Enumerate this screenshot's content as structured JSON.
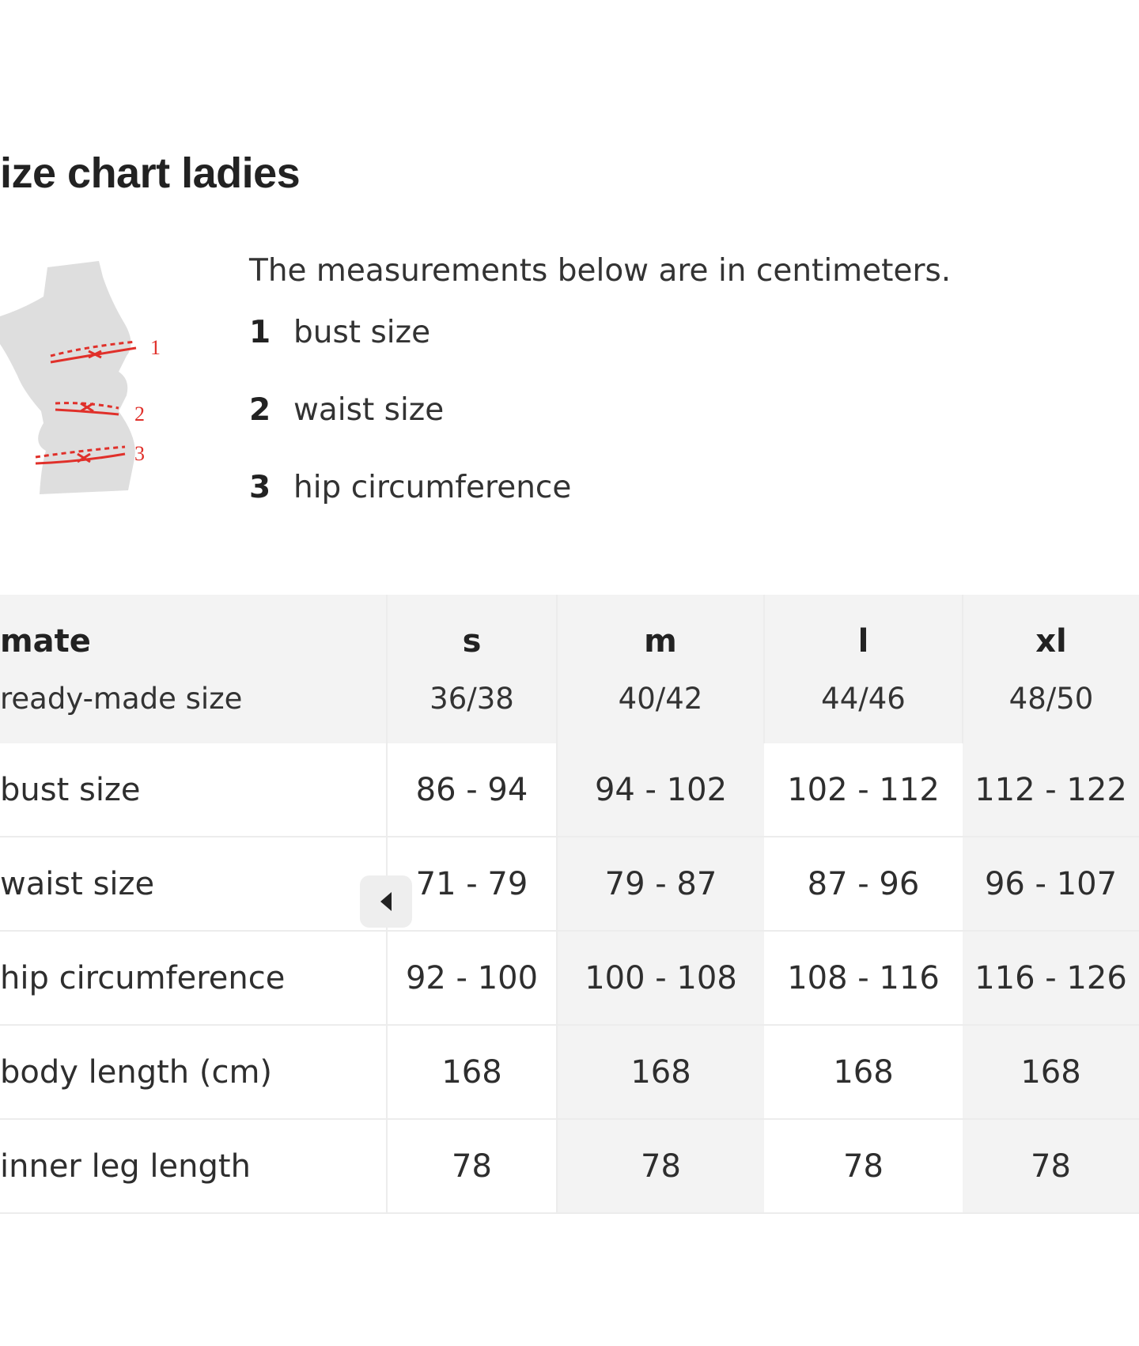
{
  "title": "ize chart ladies",
  "intro": "The measurements below are in centimeters.",
  "legend": [
    {
      "num": "1",
      "label": "bust size"
    },
    {
      "num": "2",
      "label": "waist size"
    },
    {
      "num": "3",
      "label": "hip circumference"
    }
  ],
  "figure": {
    "markers": [
      "1",
      "2",
      "3"
    ],
    "silhouette_color": "#dcdcdc",
    "marker_color": "#e0302a"
  },
  "table": {
    "head": {
      "label": "mate",
      "sub_label": "ready-made size",
      "sizes": [
        "s",
        "m",
        "l",
        "xl"
      ],
      "ready_made": [
        "36/38",
        "40/42",
        "44/46",
        "48/50"
      ]
    },
    "rows": [
      {
        "label": "bust size",
        "values": [
          "86 - 94",
          "94 - 102",
          "102 - 112",
          "112 - 122"
        ]
      },
      {
        "label": "waist size",
        "values": [
          "71 - 79",
          "79 - 87",
          "87 - 96",
          "96 - 107"
        ]
      },
      {
        "label": "hip circumference",
        "values": [
          "92 - 100",
          "100 - 108",
          "108 - 116",
          "116 - 126"
        ]
      },
      {
        "label": "body length (cm)",
        "values": [
          "168",
          "168",
          "168",
          "168"
        ]
      },
      {
        "label": "inner leg length",
        "values": [
          "78",
          "78",
          "78",
          "78"
        ]
      }
    ]
  },
  "scroll_button": {
    "icon": "chevron-left-icon"
  }
}
